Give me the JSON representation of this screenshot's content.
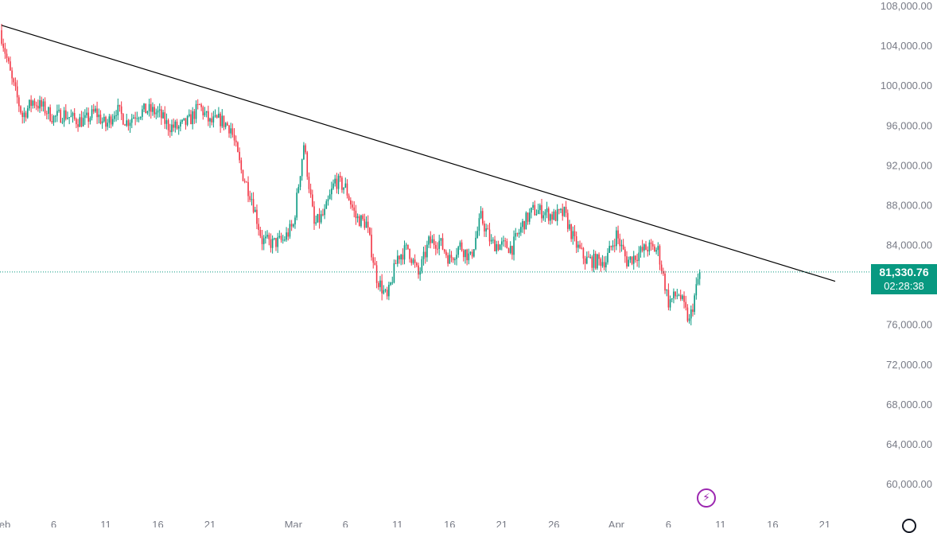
{
  "colors": {
    "up": "#089981",
    "down": "#f23645",
    "trendline": "#000000",
    "axis_text": "#787b86",
    "last_price_line": "#089981",
    "accent_icon": "#9c27b0"
  },
  "price_tag": {
    "price": "81,330.76",
    "countdown": "02:28:38"
  },
  "icons": {
    "lightning": "lightning-icon",
    "settings": "gear-icon"
  },
  "chart_data": {
    "type": "candlestick",
    "title": "",
    "xlabel": "",
    "ylabel": "",
    "ylim": [
      58000,
      108800
    ],
    "y_ticks": [
      "108,000.00",
      "104,000.00",
      "100,000.00",
      "96,000.00",
      "92,000.00",
      "88,000.00",
      "84,000.00",
      "80,000.00",
      "76,000.00",
      "72,000.00",
      "68,000.00",
      "64,000.00",
      "60,000.00"
    ],
    "y_tick_values": [
      108000,
      104000,
      100000,
      96000,
      92000,
      88000,
      84000,
      80000,
      76000,
      72000,
      68000,
      64000,
      60000
    ],
    "x_ticks": [
      "Feb",
      "6",
      "11",
      "16",
      "21",
      "Mar",
      "6",
      "11",
      "16",
      "21",
      "26",
      "Apr",
      "6",
      "11",
      "16",
      "21"
    ],
    "x_tick_dates": [
      "2025-02-01",
      "2025-02-06",
      "2025-02-11",
      "2025-02-16",
      "2025-02-21",
      "2025-03-01",
      "2025-03-06",
      "2025-03-11",
      "2025-03-16",
      "2025-03-21",
      "2025-03-26",
      "2025-04-01",
      "2025-04-06",
      "2025-04-11",
      "2025-04-16",
      "2025-04-21"
    ],
    "last_price": 81330.76,
    "trendline": {
      "start": [
        "2025-02-01",
        106100
      ],
      "end": [
        "2025-04-22",
        80400
      ]
    },
    "close_path": [
      [
        "2025-02-01",
        105000
      ],
      [
        "2025-02-02",
        100500
      ],
      [
        "2025-02-03",
        97000
      ],
      [
        "2025-02-04",
        98500
      ],
      [
        "2025-02-05",
        97800
      ],
      [
        "2025-02-06",
        96800
      ],
      [
        "2025-02-07",
        97200
      ],
      [
        "2025-02-08",
        96600
      ],
      [
        "2025-02-09",
        96500
      ],
      [
        "2025-02-10",
        97400
      ],
      [
        "2025-02-11",
        96000
      ],
      [
        "2025-02-12",
        97700
      ],
      [
        "2025-02-13",
        96400
      ],
      [
        "2025-02-14",
        97300
      ],
      [
        "2025-02-15",
        97600
      ],
      [
        "2025-02-16",
        97300
      ],
      [
        "2025-02-17",
        96000
      ],
      [
        "2025-02-18",
        95800
      ],
      [
        "2025-02-19",
        96500
      ],
      [
        "2025-02-20",
        98000
      ],
      [
        "2025-02-21",
        96300
      ],
      [
        "2025-02-22",
        96600
      ],
      [
        "2025-02-23",
        95800
      ],
      [
        "2025-02-24",
        91500
      ],
      [
        "2025-02-25",
        88800
      ],
      [
        "2025-02-26",
        84500
      ],
      [
        "2025-02-27",
        84200
      ],
      [
        "2025-02-28",
        84500
      ],
      [
        "2025-03-01",
        86000
      ],
      [
        "2025-03-02",
        94200
      ],
      [
        "2025-03-03",
        86000
      ],
      [
        "2025-03-04",
        87200
      ],
      [
        "2025-03-05",
        90500
      ],
      [
        "2025-03-06",
        89800
      ],
      [
        "2025-03-07",
        86800
      ],
      [
        "2025-03-08",
        86200
      ],
      [
        "2025-03-09",
        80800
      ],
      [
        "2025-03-10",
        78600
      ],
      [
        "2025-03-11",
        82900
      ],
      [
        "2025-03-12",
        83700
      ],
      [
        "2025-03-13",
        81000
      ],
      [
        "2025-03-14",
        84300
      ],
      [
        "2025-03-15",
        84400
      ],
      [
        "2025-03-16",
        82600
      ],
      [
        "2025-03-17",
        84000
      ],
      [
        "2025-03-18",
        82700
      ],
      [
        "2025-03-19",
        86800
      ],
      [
        "2025-03-20",
        84200
      ],
      [
        "2025-03-21",
        84000
      ],
      [
        "2025-03-22",
        83800
      ],
      [
        "2025-03-23",
        86100
      ],
      [
        "2025-03-24",
        87500
      ],
      [
        "2025-03-25",
        87400
      ],
      [
        "2025-03-26",
        86900
      ],
      [
        "2025-03-27",
        87200
      ],
      [
        "2025-03-28",
        84300
      ],
      [
        "2025-03-29",
        82600
      ],
      [
        "2025-03-30",
        82400
      ],
      [
        "2025-03-31",
        82500
      ],
      [
        "2025-04-01",
        85100
      ],
      [
        "2025-04-02",
        82400
      ],
      [
        "2025-04-03",
        83100
      ],
      [
        "2025-04-04",
        83800
      ],
      [
        "2025-04-05",
        83500
      ],
      [
        "2025-04-06",
        78300
      ],
      [
        "2025-04-07",
        79200
      ],
      [
        "2025-04-08",
        76300
      ],
      [
        "2025-04-09",
        81330.76
      ]
    ]
  }
}
